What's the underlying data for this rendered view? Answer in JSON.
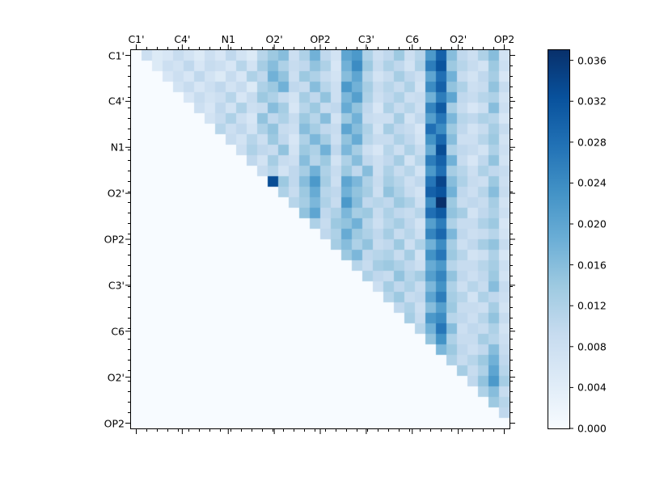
{
  "figure": {
    "background": "#ffffff"
  },
  "chart_data": {
    "type": "heatmap",
    "title": "",
    "x_axis_labels": [
      "C1'",
      "C4'",
      "N1",
      "O2'",
      "OP2",
      "C3'",
      "C6",
      "O2'",
      "OP2"
    ],
    "y_axis_labels": [
      "C1'",
      "C4'",
      "N1",
      "O2'",
      "OP2",
      "C3'",
      "C6",
      "O2'",
      "OP2"
    ],
    "n_cells": 36,
    "cells_per_group": 4,
    "layout": "upper-triangle",
    "value_scale": 0.001,
    "vmin": 0.0,
    "vmax": 0.037,
    "colormap": "Blues",
    "colormap_stops": [
      [
        0.0,
        "#f7fbff"
      ],
      [
        0.125,
        "#deebf7"
      ],
      [
        0.25,
        "#c6dbef"
      ],
      [
        0.375,
        "#9ecae1"
      ],
      [
        0.5,
        "#6baed6"
      ],
      [
        0.625,
        "#4292c6"
      ],
      [
        0.75,
        "#2171b5"
      ],
      [
        0.875,
        "#08519c"
      ],
      [
        1.0,
        "#08306b"
      ]
    ],
    "matrix_upper": [
      [
        8,
        5,
        6,
        9,
        7,
        5,
        8,
        6,
        10,
        7,
        5,
        11,
        14,
        16,
        8,
        12,
        18,
        10,
        7,
        20,
        22,
        12,
        8,
        10,
        14,
        8,
        11,
        22,
        30,
        16,
        10,
        8,
        12,
        16,
        7
      ],
      [
        5,
        8,
        7,
        10,
        6,
        9,
        8,
        6,
        11,
        7,
        13,
        16,
        12,
        9,
        10,
        15,
        12,
        6,
        18,
        24,
        14,
        9,
        12,
        10,
        7,
        12,
        26,
        32,
        14,
        11,
        9,
        7,
        14,
        8
      ],
      [
        6,
        8,
        6,
        10,
        7,
        5,
        9,
        6,
        12,
        10,
        18,
        15,
        8,
        14,
        12,
        9,
        7,
        16,
        20,
        11,
        7,
        9,
        13,
        10,
        8,
        20,
        28,
        18,
        9,
        7,
        10,
        13,
        6
      ],
      [
        7,
        9,
        6,
        8,
        10,
        7,
        9,
        5,
        12,
        14,
        18,
        10,
        9,
        16,
        11,
        8,
        22,
        18,
        13,
        9,
        11,
        9,
        12,
        7,
        24,
        30,
        15,
        12,
        8,
        9,
        15,
        9
      ],
      [
        6,
        9,
        7,
        8,
        11,
        6,
        9,
        14,
        12,
        9,
        7,
        13,
        10,
        15,
        8,
        17,
        21,
        12,
        8,
        10,
        12,
        8,
        9,
        18,
        26,
        20,
        10,
        9,
        11,
        12,
        7
      ],
      [
        8,
        6,
        10,
        7,
        12,
        8,
        9,
        16,
        13,
        6,
        11,
        14,
        9,
        10,
        19,
        15,
        10,
        6,
        12,
        9,
        11,
        8,
        25,
        31,
        13,
        9,
        6,
        8,
        16,
        8
      ],
      [
        7,
        9,
        12,
        8,
        6,
        15,
        10,
        12,
        9,
        14,
        11,
        16,
        7,
        14,
        18,
        9,
        8,
        8,
        13,
        7,
        10,
        21,
        27,
        17,
        11,
        10,
        12,
        11,
        6
      ],
      [
        11,
        8,
        10,
        7,
        12,
        15,
        9,
        8,
        16,
        13,
        10,
        9,
        20,
        16,
        12,
        7,
        13,
        10,
        9,
        6,
        28,
        24,
        14,
        10,
        7,
        9,
        13,
        9
      ],
      [
        9,
        7,
        11,
        8,
        14,
        10,
        6,
        12,
        17,
        13,
        8,
        15,
        19,
        11,
        9,
        9,
        12,
        10,
        7,
        23,
        29,
        16,
        8,
        8,
        11,
        14,
        7
      ],
      [
        8,
        12,
        10,
        9,
        15,
        7,
        14,
        12,
        18,
        10,
        17,
        13,
        8,
        6,
        11,
        8,
        12,
        9,
        19,
        33,
        12,
        10,
        9,
        7,
        12,
        8
      ],
      [
        10,
        7,
        13,
        9,
        8,
        16,
        11,
        14,
        7,
        12,
        16,
        10,
        8,
        10,
        13,
        7,
        11,
        26,
        30,
        18,
        9,
        6,
        10,
        15,
        7
      ],
      [
        9,
        11,
        7,
        10,
        13,
        18,
        12,
        9,
        14,
        10,
        16,
        8,
        12,
        9,
        11,
        7,
        22,
        28,
        13,
        11,
        8,
        12,
        10,
        9
      ],
      [
        33,
        14,
        10,
        16,
        22,
        13,
        8,
        20,
        17,
        12,
        9,
        13,
        11,
        8,
        10,
        27,
        34,
        16,
        12,
        9,
        8,
        14,
        8
      ],
      [
        12,
        9,
        14,
        19,
        11,
        10,
        18,
        15,
        13,
        8,
        15,
        12,
        9,
        7,
        30,
        32,
        18,
        10,
        8,
        11,
        16,
        9
      ],
      [
        11,
        13,
        17,
        12,
        9,
        22,
        16,
        10,
        11,
        10,
        14,
        12,
        8,
        24,
        37,
        14,
        9,
        10,
        9,
        13,
        7
      ],
      [
        15,
        20,
        10,
        12,
        17,
        13,
        14,
        9,
        12,
        10,
        9,
        11,
        28,
        31,
        15,
        13,
        7,
        10,
        12,
        8
      ],
      [
        12,
        9,
        14,
        15,
        18,
        11,
        8,
        11,
        13,
        10,
        7,
        21,
        26,
        12,
        9,
        9,
        12,
        14,
        6
      ],
      [
        10,
        12,
        19,
        14,
        12,
        10,
        13,
        9,
        11,
        8,
        25,
        29,
        17,
        10,
        8,
        9,
        11,
        7
      ],
      [
        13,
        16,
        12,
        15,
        9,
        10,
        14,
        8,
        12,
        18,
        24,
        13,
        8,
        10,
        13,
        15,
        9
      ],
      [
        14,
        17,
        10,
        11,
        12,
        9,
        13,
        7,
        23,
        27,
        14,
        11,
        7,
        8,
        12,
        6
      ],
      [
        11,
        9,
        13,
        14,
        12,
        10,
        8,
        19,
        22,
        11,
        9,
        9,
        11,
        13,
        8
      ],
      [
        12,
        10,
        9,
        15,
        11,
        13,
        21,
        25,
        15,
        10,
        8,
        10,
        14,
        7
      ],
      [
        8,
        13,
        10,
        12,
        9,
        17,
        23,
        12,
        8,
        11,
        9,
        16,
        9
      ],
      [
        11,
        14,
        9,
        10,
        20,
        26,
        13,
        11,
        7,
        12,
        10,
        8
      ],
      [
        10,
        12,
        8,
        16,
        21,
        14,
        9,
        9,
        8,
        13,
        7
      ],
      [
        13,
        9,
        22,
        24,
        11,
        10,
        8,
        11,
        15,
        9
      ],
      [
        11,
        18,
        27,
        16,
        8,
        10,
        9,
        12,
        7
      ],
      [
        15,
        23,
        12,
        9,
        9,
        13,
        11,
        8
      ],
      [
        17,
        14,
        10,
        8,
        10,
        16,
        9
      ],
      [
        12,
        9,
        11,
        14,
        18,
        10
      ],
      [
        13,
        9,
        12,
        20,
        11
      ],
      [
        10,
        15,
        22,
        13
      ],
      [
        12,
        16,
        9
      ],
      [
        14,
        11
      ],
      [
        10
      ],
      []
    ],
    "colorbar": {
      "tick_labels": [
        "0.000",
        "0.004",
        "0.008",
        "0.012",
        "0.016",
        "0.020",
        "0.024",
        "0.028",
        "0.032",
        "0.036"
      ],
      "tick_values": [
        0.0,
        0.004,
        0.008,
        0.012,
        0.016,
        0.02,
        0.024,
        0.028,
        0.032,
        0.036
      ]
    }
  }
}
